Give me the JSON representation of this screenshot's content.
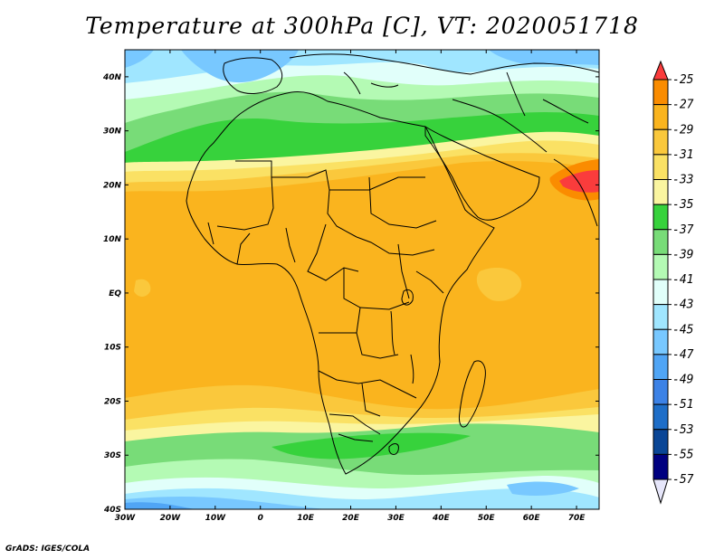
{
  "title": "Temperature at 300hPa [C], VT: 2020051718",
  "credit": "GrADS: IGES/COLA",
  "map": {
    "lon_range": [
      -30,
      75
    ],
    "lat_range": [
      -40,
      45
    ],
    "x_ticks": [
      {
        "value": -30,
        "label": "30W"
      },
      {
        "value": -20,
        "label": "20W"
      },
      {
        "value": -10,
        "label": "10W"
      },
      {
        "value": 0,
        "label": "0"
      },
      {
        "value": 10,
        "label": "10E"
      },
      {
        "value": 20,
        "label": "20E"
      },
      {
        "value": 30,
        "label": "30E"
      },
      {
        "value": 40,
        "label": "40E"
      },
      {
        "value": 50,
        "label": "50E"
      },
      {
        "value": 60,
        "label": "60E"
      },
      {
        "value": 70,
        "label": "70E"
      }
    ],
    "y_ticks": [
      {
        "value": 40,
        "label": "40N"
      },
      {
        "value": 30,
        "label": "30N"
      },
      {
        "value": 20,
        "label": "20N"
      },
      {
        "value": 10,
        "label": "10N"
      },
      {
        "value": 0,
        "label": "EQ"
      },
      {
        "value": -10,
        "label": "10S"
      },
      {
        "value": -20,
        "label": "20S"
      },
      {
        "value": -30,
        "label": "30S"
      },
      {
        "value": -40,
        "label": "40S"
      }
    ]
  },
  "colorbar": {
    "levels": [
      "-25",
      "-27",
      "-29",
      "-31",
      "-33",
      "-35",
      "-37",
      "-39",
      "-41",
      "-43",
      "-45",
      "-47",
      "-49",
      "-51",
      "-53",
      "-55",
      "-57"
    ],
    "colors": [
      "#fa3c3c",
      "#fa8c00",
      "#fab41e",
      "#fac83c",
      "#fae164",
      "#faf5a0",
      "#37d23c",
      "#78dc78",
      "#b4fab4",
      "#e1fffa",
      "#a0e6ff",
      "#78c8ff",
      "#50a5f5",
      "#3c82e6",
      "#1e6ec8",
      "#0a4696",
      "#000080",
      "#e6e6fa"
    ]
  }
}
